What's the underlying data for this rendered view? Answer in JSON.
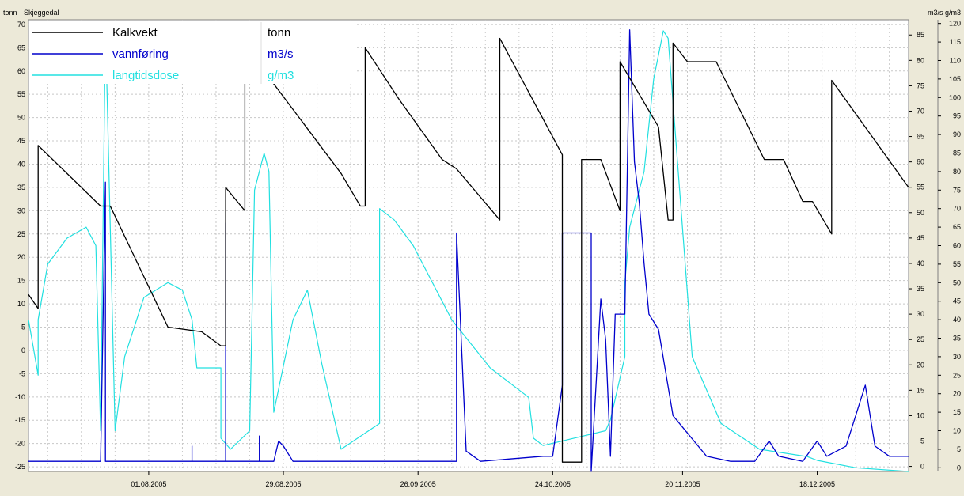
{
  "header": {
    "left_unit": "tonn",
    "station": "Skjeggedal",
    "right_units": "m3/s  g/m3"
  },
  "colors": {
    "kalkvekt": "#000000",
    "vannforing": "#0000cc",
    "langtidsdose": "#22e0e0",
    "background": "#ffffff",
    "frame": "#ece9d8",
    "grid": "#c8c8c8"
  },
  "chart_data": {
    "type": "line",
    "title": "",
    "x_range": [
      "2005-07-07",
      "2006-01-06"
    ],
    "x_ticks": [
      "01.08.2005",
      "29.08.2005",
      "26.09.2005",
      "24.10.2005",
      "20.11.2005",
      "18.12.2005"
    ],
    "x_tick_dates": [
      "2005-08-01",
      "2005-08-29",
      "2005-09-26",
      "2005-10-24",
      "2005-11-20",
      "2005-12-18"
    ],
    "axes": {
      "left": {
        "unit": "tonn",
        "min": -26,
        "max": 71,
        "ticks": [
          -25,
          -20,
          -15,
          -10,
          -5,
          0,
          5,
          10,
          15,
          20,
          25,
          30,
          35,
          40,
          45,
          50,
          55,
          60,
          65,
          70
        ]
      },
      "right1": {
        "unit": "m3/s",
        "min": -1,
        "max": 88,
        "ticks": [
          0,
          5,
          10,
          15,
          20,
          25,
          30,
          35,
          40,
          45,
          50,
          55,
          60,
          65,
          70,
          75,
          80,
          85
        ]
      },
      "right2": {
        "unit": "g/m3",
        "min": -1,
        "max": 121,
        "ticks": [
          0,
          5,
          10,
          15,
          20,
          25,
          30,
          35,
          40,
          45,
          50,
          55,
          60,
          65,
          70,
          75,
          80,
          85,
          90,
          95,
          100,
          105,
          110,
          115,
          120
        ]
      }
    },
    "grid": true,
    "legend_position": "top-left",
    "series": [
      {
        "name": "Kalkvekt",
        "unit": "tonn",
        "axis": "left",
        "points": [
          [
            "2005-07-07",
            12
          ],
          [
            "2005-07-09",
            9
          ],
          [
            "2005-07-09",
            44
          ],
          [
            "2005-07-22",
            31
          ],
          [
            "2005-07-24",
            31
          ],
          [
            "2005-08-05",
            5
          ],
          [
            "2005-08-12",
            4
          ],
          [
            "2005-08-16",
            1
          ],
          [
            "2005-08-17",
            1
          ],
          [
            "2005-08-17",
            35
          ],
          [
            "2005-08-21",
            30
          ],
          [
            "2005-08-21",
            60
          ],
          [
            "2005-08-25",
            60
          ],
          [
            "2005-09-10",
            38
          ],
          [
            "2005-09-14",
            31
          ],
          [
            "2005-09-15",
            31
          ],
          [
            "2005-09-15",
            65
          ],
          [
            "2005-09-22",
            54
          ],
          [
            "2005-10-01",
            41
          ],
          [
            "2005-10-04",
            39
          ],
          [
            "2005-10-13",
            28
          ],
          [
            "2005-10-13",
            67
          ],
          [
            "2005-10-26",
            42
          ],
          [
            "2005-10-26",
            -24
          ],
          [
            "2005-10-30",
            -24
          ],
          [
            "2005-10-30",
            41
          ],
          [
            "2005-11-03",
            41
          ],
          [
            "2005-11-07",
            30
          ],
          [
            "2005-11-07",
            62
          ],
          [
            "2005-11-15",
            48
          ],
          [
            "2005-11-17",
            28
          ],
          [
            "2005-11-18",
            28
          ],
          [
            "2005-11-18",
            66
          ],
          [
            "2005-11-21",
            62
          ],
          [
            "2005-11-27",
            62
          ],
          [
            "2005-12-07",
            41
          ],
          [
            "2005-12-11",
            41
          ],
          [
            "2005-12-15",
            32
          ],
          [
            "2005-12-17",
            32
          ],
          [
            "2005-12-21",
            25
          ],
          [
            "2005-12-21",
            58
          ],
          [
            "2006-01-06",
            35
          ]
        ]
      },
      {
        "name": "vannføring",
        "unit": "m3/s",
        "axis": "right1",
        "points": [
          [
            "2005-07-07",
            1
          ],
          [
            "2005-07-14",
            1
          ],
          [
            "2005-07-22",
            1
          ],
          [
            "2005-07-23",
            56
          ],
          [
            "2005-07-23",
            1
          ],
          [
            "2005-08-10",
            1
          ],
          [
            "2005-08-10",
            4
          ],
          [
            "2005-08-10",
            1
          ],
          [
            "2005-08-17",
            1
          ],
          [
            "2005-08-17",
            48
          ],
          [
            "2005-08-17",
            1
          ],
          [
            "2005-08-24",
            1
          ],
          [
            "2005-08-24",
            6
          ],
          [
            "2005-08-24",
            1
          ],
          [
            "2005-08-27",
            1
          ],
          [
            "2005-08-28",
            5
          ],
          [
            "2005-08-29",
            4
          ],
          [
            "2005-08-31",
            1
          ],
          [
            "2005-09-22",
            1
          ],
          [
            "2005-10-04",
            1
          ],
          [
            "2005-10-04",
            46
          ],
          [
            "2005-10-06",
            3
          ],
          [
            "2005-10-09",
            1
          ],
          [
            "2005-10-22",
            2
          ],
          [
            "2005-10-24",
            2
          ],
          [
            "2005-10-26",
            16
          ],
          [
            "2005-10-26",
            46
          ],
          [
            "2005-11-01",
            46
          ],
          [
            "2005-11-01",
            -1
          ],
          [
            "2005-11-03",
            33
          ],
          [
            "2005-11-04",
            25
          ],
          [
            "2005-11-05",
            2
          ],
          [
            "2005-11-06",
            30
          ],
          [
            "2005-11-08",
            30
          ],
          [
            "2005-11-09",
            86
          ],
          [
            "2005-11-10",
            60
          ],
          [
            "2005-11-11",
            52
          ],
          [
            "2005-11-12",
            40
          ],
          [
            "2005-11-13",
            30
          ],
          [
            "2005-11-15",
            27
          ],
          [
            "2005-11-18",
            10
          ],
          [
            "2005-11-25",
            2
          ],
          [
            "2005-11-30",
            1
          ],
          [
            "2005-12-05",
            1
          ],
          [
            "2005-12-08",
            5
          ],
          [
            "2005-12-10",
            2
          ],
          [
            "2005-12-15",
            1
          ],
          [
            "2005-12-18",
            5
          ],
          [
            "2005-12-20",
            2
          ],
          [
            "2005-12-24",
            4
          ],
          [
            "2005-12-28",
            16
          ],
          [
            "2005-12-30",
            4
          ],
          [
            "2006-01-02",
            2
          ],
          [
            "2006-01-06",
            2
          ]
        ]
      },
      {
        "name": "langtidsdose",
        "unit": "g/m3",
        "axis": "right2",
        "points": [
          [
            "2005-07-07",
            40
          ],
          [
            "2005-07-09",
            25
          ],
          [
            "2005-07-09",
            40
          ],
          [
            "2005-07-11",
            55
          ],
          [
            "2005-07-15",
            62
          ],
          [
            "2005-07-19",
            65
          ],
          [
            "2005-07-21",
            60
          ],
          [
            "2005-07-22",
            10
          ],
          [
            "2005-07-23",
            120
          ],
          [
            "2005-07-24",
            65
          ],
          [
            "2005-07-25",
            10
          ],
          [
            "2005-07-27",
            30
          ],
          [
            "2005-07-31",
            46
          ],
          [
            "2005-08-05",
            50
          ],
          [
            "2005-08-08",
            48
          ],
          [
            "2005-08-10",
            40
          ],
          [
            "2005-08-11",
            27
          ],
          [
            "2005-08-13",
            27
          ],
          [
            "2005-08-16",
            27
          ],
          [
            "2005-08-16",
            8
          ],
          [
            "2005-08-18",
            5
          ],
          [
            "2005-08-22",
            10
          ],
          [
            "2005-08-23",
            75
          ],
          [
            "2005-08-25",
            85
          ],
          [
            "2005-08-26",
            80
          ],
          [
            "2005-08-27",
            15
          ],
          [
            "2005-08-31",
            40
          ],
          [
            "2005-09-03",
            48
          ],
          [
            "2005-09-06",
            28
          ],
          [
            "2005-09-10",
            5
          ],
          [
            "2005-09-18",
            12
          ],
          [
            "2005-09-18",
            70
          ],
          [
            "2005-09-21",
            67
          ],
          [
            "2005-09-25",
            60
          ],
          [
            "2005-10-03",
            40
          ],
          [
            "2005-10-11",
            27
          ],
          [
            "2005-10-18",
            20
          ],
          [
            "2005-10-19",
            19
          ],
          [
            "2005-10-20",
            8
          ],
          [
            "2005-10-22",
            6
          ],
          [
            "2005-11-04",
            10
          ],
          [
            "2005-11-05",
            13
          ],
          [
            "2005-11-08",
            30
          ],
          [
            "2005-11-08",
            50
          ],
          [
            "2005-11-09",
            65
          ],
          [
            "2005-11-12",
            80
          ],
          [
            "2005-11-14",
            105
          ],
          [
            "2005-11-16",
            118
          ],
          [
            "2005-11-17",
            116
          ],
          [
            "2005-11-22",
            30
          ],
          [
            "2005-11-28",
            12
          ],
          [
            "2005-12-06",
            5
          ],
          [
            "2005-12-16",
            3
          ],
          [
            "2005-12-18",
            2
          ],
          [
            "2005-12-26",
            0
          ],
          [
            "2006-01-06",
            -1
          ]
        ]
      }
    ]
  }
}
